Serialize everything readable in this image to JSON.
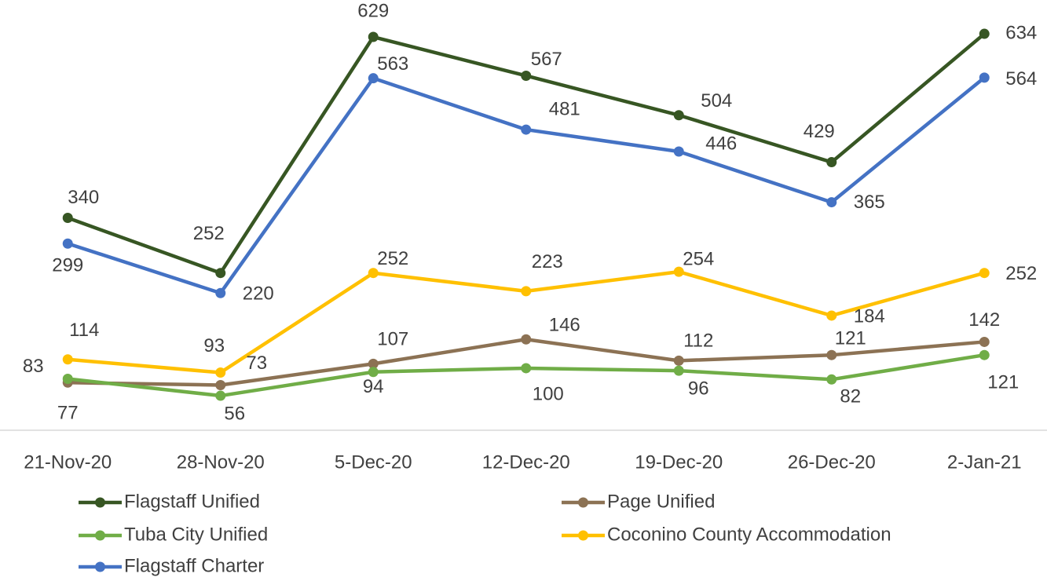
{
  "chart_data": {
    "type": "line",
    "categories": [
      "21-Nov-20",
      "28-Nov-20",
      "5-Dec-20",
      "12-Dec-20",
      "19-Dec-20",
      "26-Dec-20",
      "2-Jan-21"
    ],
    "ylim": [
      0,
      700
    ],
    "legend": "bottom",
    "series": [
      {
        "name": "Flagstaff Unified",
        "color": "#375623",
        "values": [
          340,
          252,
          629,
          567,
          504,
          429,
          634
        ]
      },
      {
        "name": "Page Unified",
        "color": "#8c7254",
        "values": [
          77,
          73,
          107,
          146,
          112,
          121,
          142
        ]
      },
      {
        "name": "Tuba City Unified",
        "color": "#70ad47",
        "values": [
          83,
          56,
          94,
          100,
          96,
          82,
          121
        ]
      },
      {
        "name": "Coconino County Accommodation",
        "color": "#ffc000",
        "values": [
          114,
          93,
          252,
          223,
          254,
          184,
          252
        ]
      },
      {
        "name": "Flagstaff Charter",
        "color": "#4472c4",
        "values": [
          299,
          220,
          563,
          481,
          446,
          365,
          564
        ]
      }
    ]
  }
}
